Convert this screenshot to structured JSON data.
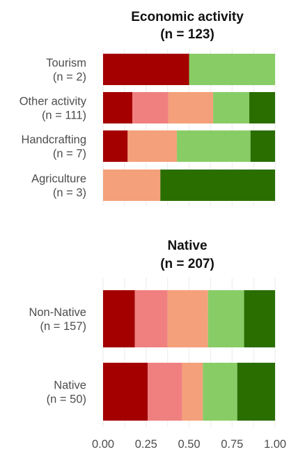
{
  "colors": [
    "#a50000",
    "#f08080",
    "#f4a07a",
    "#88cc66",
    "#2a6e00"
  ],
  "chart_data": [
    {
      "type": "bar",
      "orientation": "horizontal",
      "stacked": true,
      "title_line1": "Economic activity",
      "title_line2": "(n = 123)",
      "xlim": [
        0,
        1
      ],
      "grid": true,
      "categories": [
        {
          "name": "Tourism",
          "n_label": "(n = 2)",
          "shares": [
            0.5,
            0,
            0,
            0.5,
            0
          ]
        },
        {
          "name": "Other activity",
          "n_label": "(n = 111)",
          "shares": [
            0.17,
            0.21,
            0.26,
            0.21,
            0.15
          ]
        },
        {
          "name": "Handcrafting",
          "n_label": "(n = 7)",
          "shares": [
            0.143,
            0,
            0.286,
            0.428,
            0.143
          ]
        },
        {
          "name": "Agriculture",
          "n_label": "(n = 3)",
          "shares": [
            0,
            0,
            0.333,
            0,
            0.667
          ]
        }
      ]
    },
    {
      "type": "bar",
      "orientation": "horizontal",
      "stacked": true,
      "title_line1": "Native",
      "title_line2": "(n = 207)",
      "xlim": [
        0,
        1
      ],
      "grid": true,
      "x_ticks": [
        "0.00",
        "0.25",
        "0.50",
        "0.75",
        "1.00"
      ],
      "categories": [
        {
          "name": "Non-Native",
          "n_label": "(n = 157)",
          "shares": [
            0.185,
            0.19,
            0.235,
            0.21,
            0.18
          ]
        },
        {
          "name": "Native",
          "n_label": "(n = 50)",
          "shares": [
            0.26,
            0.2,
            0.12,
            0.2,
            0.22
          ]
        }
      ]
    }
  ]
}
